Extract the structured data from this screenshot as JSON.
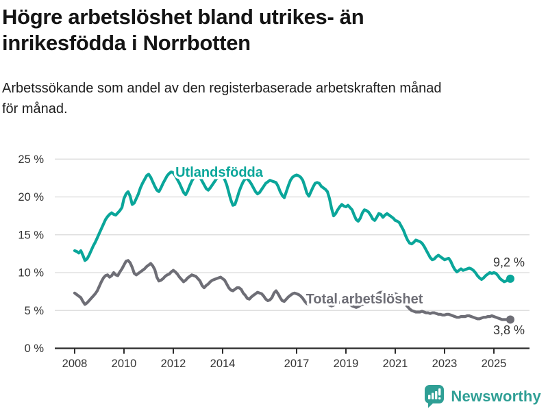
{
  "header": {
    "title_lines": [
      "Högre arbetslöshet bland utrikes- än",
      "inrikesfödda i Norrbotten"
    ],
    "subtitle_lines": [
      "Arbetssökande som andel av den registerbaserade arbetskraften månad",
      "för månad."
    ]
  },
  "footer": {
    "brand": "Newsworthy"
  },
  "colors": {
    "teal": "#0aa69a",
    "gray": "#6e6e76",
    "axis_text": "#333333",
    "axis_line": "#2b2b2b",
    "grid": "#d9d9d9",
    "brand_teal": "#2f9f95",
    "halo": "#ffffff"
  },
  "chart_data": {
    "type": "line",
    "title": "Högre arbetslöshet bland utrikes- än inrikesfödda i Norrbotten",
    "subtitle": "Arbetssökande som andel av den registerbaserade arbetskraften månad för månad.",
    "unit": "%",
    "grid": "horizontal",
    "legend_position": "inline-labels",
    "x_start_year": 2008,
    "x_step_months": 1,
    "x_tick_labels": [
      "2008",
      "2010",
      "2012",
      "2014",
      "2017",
      "2019",
      "2021",
      "2023",
      "2025"
    ],
    "x_tick_years": [
      2008,
      2010,
      2012,
      2014,
      2017,
      2019,
      2021,
      2023,
      2025
    ],
    "ylim": [
      0,
      25
    ],
    "y_ticks": [
      0,
      5,
      10,
      15,
      20,
      25
    ],
    "y_tick_labels": [
      "0 %",
      "5 %",
      "10 %",
      "15 %",
      "20 %",
      "25 %"
    ],
    "series": [
      {
        "name": "Utlandsfödda",
        "color": "#0aa69a",
        "end_value": 9.2,
        "end_label": "9,2 %",
        "values": [
          12.9,
          12.8,
          12.6,
          12.9,
          12.3,
          11.6,
          11.8,
          12.3,
          12.9,
          13.5,
          14.0,
          14.6,
          15.2,
          15.8,
          16.4,
          17.0,
          17.4,
          17.7,
          17.9,
          17.7,
          17.6,
          17.9,
          18.2,
          18.6,
          19.8,
          20.4,
          20.7,
          20.1,
          19.0,
          19.2,
          19.8,
          20.4,
          21.2,
          21.8,
          22.3,
          22.8,
          23.0,
          22.6,
          22.0,
          21.4,
          20.9,
          20.7,
          21.2,
          21.8,
          22.3,
          22.8,
          23.1,
          23.3,
          23.2,
          22.8,
          22.3,
          21.8,
          21.2,
          20.6,
          20.3,
          20.8,
          21.5,
          22.1,
          22.6,
          22.9,
          23.0,
          22.6,
          22.1,
          21.6,
          21.1,
          20.9,
          21.2,
          21.6,
          22.0,
          22.4,
          22.7,
          22.9,
          22.8,
          22.3,
          21.6,
          20.6,
          19.6,
          18.9,
          19.0,
          19.8,
          20.7,
          21.4,
          22.0,
          22.4,
          22.4,
          22.1,
          21.7,
          21.2,
          20.7,
          20.4,
          20.6,
          21.0,
          21.4,
          21.8,
          22.0,
          22.2,
          22.1,
          22.0,
          21.9,
          21.4,
          20.7,
          20.2,
          19.9,
          20.7,
          21.5,
          22.2,
          22.6,
          22.8,
          22.9,
          22.8,
          22.6,
          22.2,
          21.4,
          20.5,
          20.1,
          20.7,
          21.3,
          21.8,
          21.9,
          21.8,
          21.4,
          21.2,
          21.0,
          20.7,
          19.8,
          18.5,
          17.5,
          17.8,
          18.3,
          18.7,
          19.0,
          18.8,
          18.7,
          18.9,
          18.6,
          18.3,
          17.6,
          17.0,
          16.8,
          17.2,
          17.9,
          18.3,
          18.2,
          18.0,
          17.6,
          17.1,
          16.9,
          17.3,
          17.8,
          17.7,
          17.3,
          17.6,
          17.8,
          17.6,
          17.4,
          17.2,
          16.9,
          16.8,
          16.6,
          16.1,
          15.6,
          14.9,
          14.3,
          13.9,
          13.8,
          14.0,
          14.3,
          14.2,
          14.1,
          13.9,
          13.5,
          13.0,
          12.5,
          12.0,
          11.7,
          11.8,
          12.1,
          12.3,
          12.1,
          11.9,
          11.7,
          11.8,
          11.9,
          11.5,
          10.9,
          10.4,
          10.1,
          10.3,
          10.5,
          10.3,
          10.4,
          10.5,
          10.6,
          10.5,
          10.3,
          10.0,
          9.6,
          9.3,
          9.1,
          9.3,
          9.6,
          9.8,
          10.0,
          9.9,
          10.0,
          9.9,
          9.6,
          9.2,
          9.0,
          8.8,
          8.9,
          9.1,
          9.2
        ]
      },
      {
        "name": "Total arbetslöshet",
        "color": "#6e6e76",
        "end_value": 3.8,
        "end_label": "3,8 %",
        "values": [
          7.3,
          7.1,
          6.9,
          6.7,
          6.2,
          5.8,
          6.0,
          6.3,
          6.6,
          6.9,
          7.2,
          7.6,
          8.2,
          8.8,
          9.3,
          9.6,
          9.7,
          9.4,
          9.6,
          10.0,
          9.7,
          9.6,
          10.1,
          10.5,
          11.0,
          11.5,
          11.6,
          11.3,
          10.7,
          9.9,
          9.7,
          9.9,
          10.1,
          10.3,
          10.5,
          10.8,
          11.0,
          11.2,
          10.9,
          10.4,
          9.4,
          8.9,
          9.0,
          9.2,
          9.5,
          9.7,
          9.8,
          10.1,
          10.3,
          10.1,
          9.8,
          9.4,
          9.1,
          8.8,
          9.0,
          9.3,
          9.5,
          9.7,
          9.6,
          9.5,
          9.2,
          8.9,
          8.3,
          8.0,
          8.3,
          8.5,
          8.8,
          9.0,
          9.1,
          9.2,
          9.3,
          9.4,
          9.2,
          9.0,
          8.5,
          8.0,
          7.7,
          7.6,
          7.8,
          8.0,
          8.0,
          7.8,
          7.3,
          7.0,
          6.6,
          6.5,
          6.8,
          7.0,
          7.2,
          7.4,
          7.3,
          7.2,
          6.9,
          6.5,
          6.3,
          6.4,
          6.7,
          7.3,
          7.6,
          7.2,
          6.7,
          6.3,
          6.2,
          6.5,
          6.8,
          7.0,
          7.2,
          7.3,
          7.2,
          7.1,
          6.9,
          6.6,
          6.2,
          5.9,
          5.8,
          6.0,
          6.2,
          6.4,
          6.5,
          6.6,
          6.5,
          6.3,
          6.1,
          5.9,
          5.7,
          5.6,
          5.7,
          5.9,
          6.0,
          6.1,
          6.2,
          6.2,
          6.1,
          6.0,
          5.8,
          5.6,
          5.5,
          5.4,
          5.5,
          5.7,
          5.8,
          5.9,
          6.0,
          6.0,
          6.1,
          6.2,
          6.5,
          7.0,
          7.3,
          7.4,
          7.4,
          7.3,
          7.2,
          7.1,
          7.1,
          7.2,
          7.2,
          7.1,
          6.9,
          6.5,
          6.1,
          5.8,
          5.5,
          5.2,
          5.0,
          4.9,
          4.8,
          4.8,
          4.8,
          4.9,
          4.8,
          4.7,
          4.7,
          4.6,
          4.7,
          4.7,
          4.6,
          4.5,
          4.5,
          4.4,
          4.4,
          4.5,
          4.5,
          4.4,
          4.3,
          4.2,
          4.1,
          4.1,
          4.2,
          4.2,
          4.2,
          4.3,
          4.3,
          4.2,
          4.1,
          4.0,
          3.9,
          3.9,
          4.0,
          4.1,
          4.1,
          4.2,
          4.2,
          4.3,
          4.2,
          4.1,
          4.0,
          3.9,
          3.8,
          3.8,
          3.8,
          3.8,
          3.8
        ]
      }
    ]
  }
}
